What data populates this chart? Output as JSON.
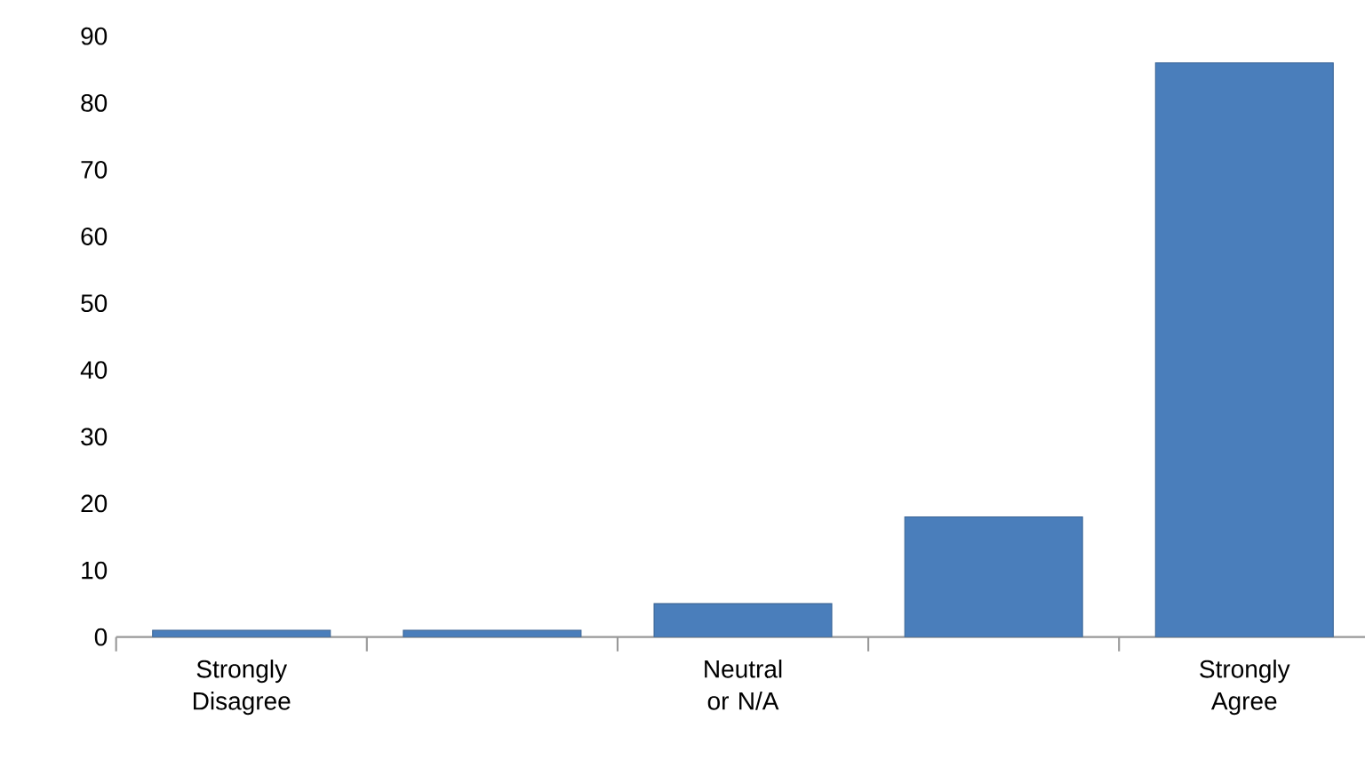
{
  "chart_data": {
    "type": "bar",
    "categories": [
      "Strongly Disagree",
      null,
      "Neutral or N/A",
      null,
      "Strongly Agree"
    ],
    "values": [
      1,
      1,
      5,
      18,
      86
    ],
    "color": "#4a7ebb",
    "ylim": [
      0,
      90
    ],
    "yticks": [
      0,
      10,
      20,
      30,
      40,
      50,
      60,
      70,
      80,
      90
    ]
  }
}
